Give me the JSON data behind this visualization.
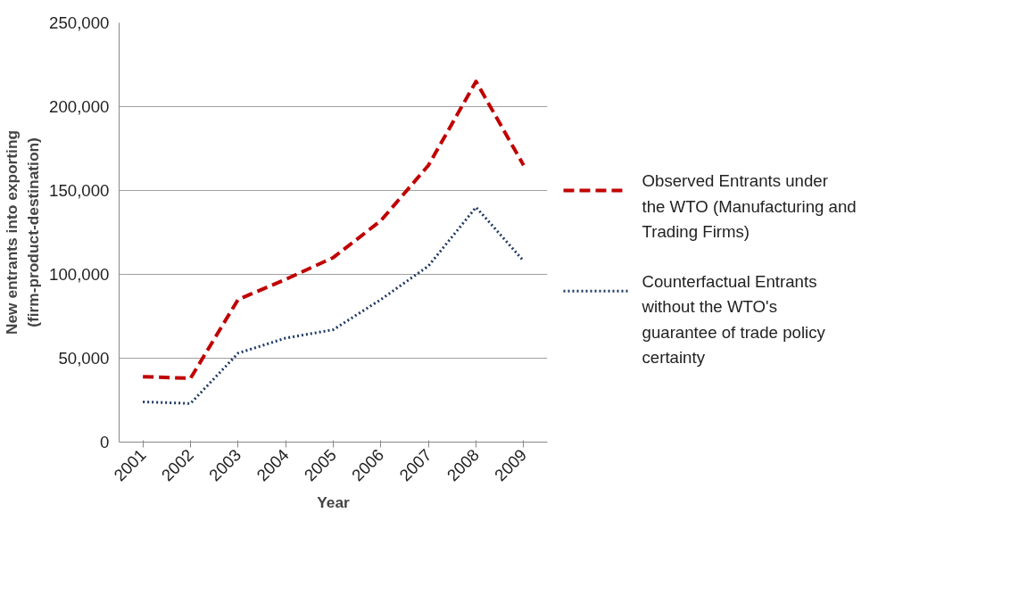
{
  "chart_data": {
    "type": "line",
    "xlabel": "Year",
    "ylabel": "New entrants into exporting (firm-product-destination)",
    "categories": [
      "2001",
      "2002",
      "2003",
      "2004",
      "2005",
      "2006",
      "2007",
      "2008",
      "2009"
    ],
    "series": [
      {
        "name": "Observed Entrants under the WTO (Manufacturing and Trading Firms)",
        "color": "#c00000",
        "line_style": "dashed",
        "values": [
          39000,
          38000,
          85000,
          97000,
          110000,
          132000,
          165000,
          215000,
          165000
        ]
      },
      {
        "name": "Counterfactual Entrants without the WTO's guarantee of trade policy certainty",
        "color": "#1f3864",
        "line_style": "dotted",
        "values": [
          24000,
          23000,
          53000,
          62000,
          67000,
          85000,
          105000,
          140000,
          108000
        ]
      }
    ],
    "ylim": [
      0,
      250000
    ],
    "yticks": [
      {
        "value": 0,
        "label": "0"
      },
      {
        "value": 50000,
        "label": "50,000"
      },
      {
        "value": 100000,
        "label": "100,000"
      },
      {
        "value": 150000,
        "label": "150,000"
      },
      {
        "value": 200000,
        "label": "200,000"
      },
      {
        "value": 250000,
        "label": "250,000"
      }
    ],
    "grid": "y",
    "legend": "right",
    "marker": "none"
  }
}
